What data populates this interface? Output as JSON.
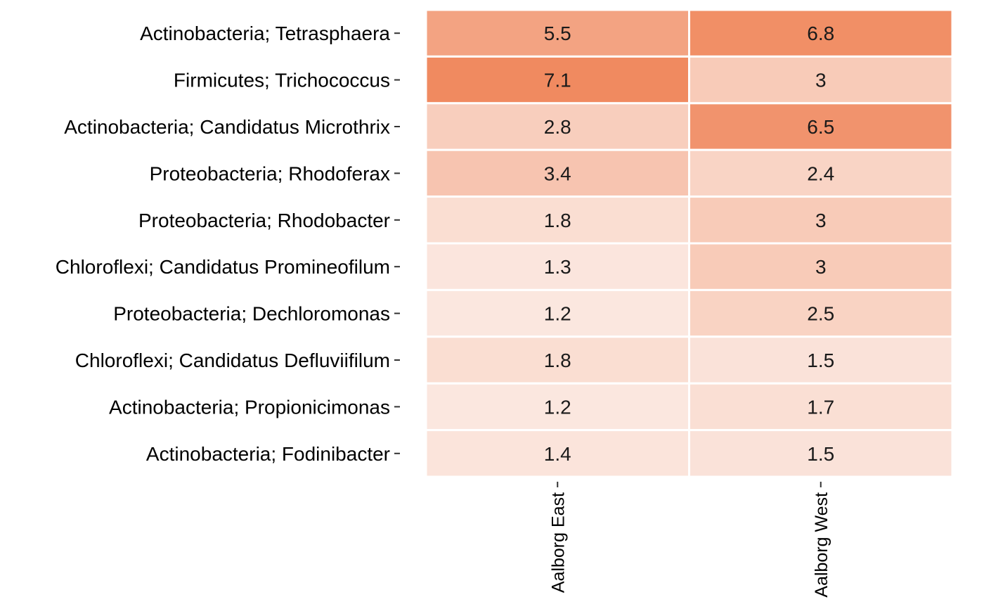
{
  "chart_data": {
    "type": "heatmap",
    "title": "",
    "xlabel": "",
    "ylabel": "",
    "x_categories": [
      "Aalborg East",
      "Aalborg West"
    ],
    "y_categories": [
      "Actinobacteria; Tetrasphaera",
      "Firmicutes; Trichococcus",
      "Actinobacteria; Candidatus Microthrix",
      "Proteobacteria; Rhodoferax",
      "Proteobacteria; Rhodobacter",
      "Chloroflexi; Candidatus Promineofilum",
      "Proteobacteria; Dechloromonas",
      "Chloroflexi; Candidatus Defluviifilum",
      "Actinobacteria; Propionicimonas",
      "Actinobacteria; Fodinibacter"
    ],
    "values": [
      [
        5.5,
        6.8
      ],
      [
        7.1,
        3
      ],
      [
        2.8,
        6.5
      ],
      [
        3.4,
        2.4
      ],
      [
        1.8,
        3
      ],
      [
        1.3,
        3
      ],
      [
        1.2,
        2.5
      ],
      [
        1.8,
        1.5
      ],
      [
        1.2,
        1.7
      ],
      [
        1.4,
        1.5
      ]
    ],
    "value_labels": [
      [
        "5.5",
        "6.8"
      ],
      [
        "7.1",
        "3"
      ],
      [
        "2.8",
        "6.5"
      ],
      [
        "3.4",
        "2.4"
      ],
      [
        "1.8",
        "3"
      ],
      [
        "1.3",
        "3"
      ],
      [
        "1.2",
        "2.5"
      ],
      [
        "1.8",
        "1.5"
      ],
      [
        "1.2",
        "1.7"
      ],
      [
        "1.4",
        "1.5"
      ]
    ],
    "color_low": "#fbe7df",
    "color_high": "#f08a60",
    "grid": false,
    "legend": "none"
  }
}
